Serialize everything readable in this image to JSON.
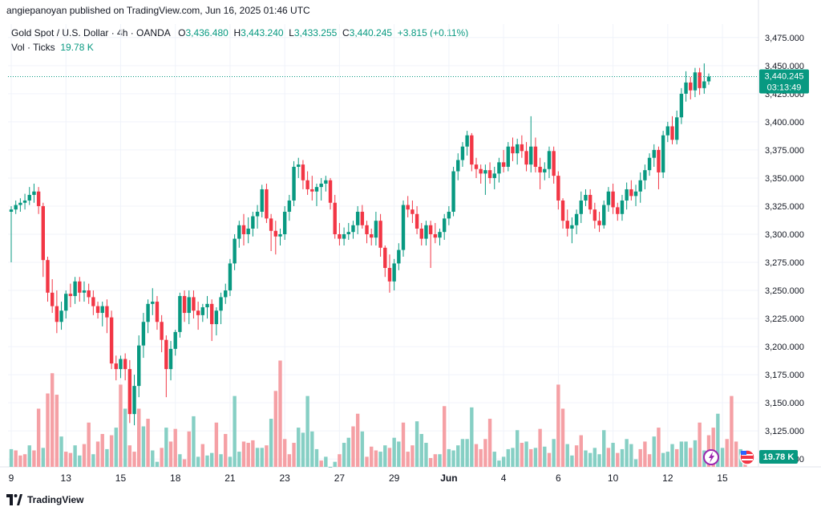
{
  "publisher_line": "angiepanoyan published on TradingView.com, Jun 16, 2025 01:46 UTC",
  "legend": {
    "symbol": "Gold Spot / U.S. Dollar · 4h · OANDA",
    "o_label": "O",
    "o": "3,436.480",
    "h_label": "H",
    "h": "3,443.240",
    "l_label": "L",
    "l": "3,433.255",
    "c_label": "C",
    "c": "3,440.245",
    "change": "+3.815 (+0.11%)",
    "vol_label": "Vol · Ticks",
    "vol_value": "19.78 K"
  },
  "price_badge": {
    "price": "3,440.245",
    "countdown": "03:13:49"
  },
  "volume_badge": "19.78 K",
  "footer_brand": "TradingView",
  "colors": {
    "up": "#089981",
    "down": "#f23645",
    "up_vol": "#86cfc4",
    "down_vol": "#f5a0a5",
    "grid": "#f0f3fa"
  },
  "chart_data": {
    "type": "candlestick",
    "ylim": [
      3093,
      3487
    ],
    "y_ticks": [
      "3,475.000",
      "3,450.000",
      "3,425.000",
      "3,400.000",
      "3,375.000",
      "3,350.000",
      "3,325.000",
      "3,300.000",
      "3,275.000",
      "3,250.000",
      "3,225.000",
      "3,200.000",
      "3,175.000",
      "3,150.000",
      "3,125.000",
      "3,100.000"
    ],
    "x_ticks": [
      {
        "label": "9",
        "index": 0
      },
      {
        "label": "13",
        "index": 12
      },
      {
        "label": "15",
        "index": 24
      },
      {
        "label": "18",
        "index": 36
      },
      {
        "label": "21",
        "index": 48
      },
      {
        "label": "23",
        "index": 60
      },
      {
        "label": "27",
        "index": 72
      },
      {
        "label": "29",
        "index": 84
      },
      {
        "label": "Jun",
        "index": 96
      },
      {
        "label": "4",
        "index": 108
      },
      {
        "label": "6",
        "index": 120
      },
      {
        "label": "10",
        "index": 132
      },
      {
        "label": "12",
        "index": 144
      },
      {
        "label": "15",
        "index": 156
      }
    ],
    "last_price": 3440.245,
    "candles": [
      [
        3320,
        3325,
        3275,
        3322
      ],
      [
        3322,
        3330,
        3318,
        3326
      ],
      [
        3326,
        3332,
        3320,
        3328
      ],
      [
        3328,
        3336,
        3322,
        3330
      ],
      [
        3330,
        3342,
        3326,
        3335
      ],
      [
        3335,
        3345,
        3328,
        3338
      ],
      [
        3338,
        3342,
        3318,
        3325
      ],
      [
        3325,
        3328,
        3262,
        3277
      ],
      [
        3277,
        3280,
        3240,
        3248
      ],
      [
        3248,
        3260,
        3230,
        3236
      ],
      [
        3236,
        3250,
        3212,
        3222
      ],
      [
        3222,
        3240,
        3215,
        3232
      ],
      [
        3232,
        3250,
        3225,
        3247
      ],
      [
        3247,
        3256,
        3235,
        3245
      ],
      [
        3245,
        3262,
        3238,
        3258
      ],
      [
        3258,
        3262,
        3240,
        3248
      ],
      [
        3248,
        3258,
        3240,
        3250
      ],
      [
        3250,
        3256,
        3238,
        3244
      ],
      [
        3244,
        3250,
        3228,
        3236
      ],
      [
        3236,
        3240,
        3225,
        3230
      ],
      [
        3230,
        3240,
        3218,
        3236
      ],
      [
        3236,
        3242,
        3212,
        3226
      ],
      [
        3226,
        3232,
        3180,
        3185
      ],
      [
        3185,
        3192,
        3170,
        3180
      ],
      [
        3180,
        3192,
        3172,
        3189
      ],
      [
        3189,
        3194,
        3170,
        3180
      ],
      [
        3180,
        3188,
        3132,
        3140
      ],
      [
        3140,
        3175,
        3130,
        3165
      ],
      [
        3165,
        3210,
        3155,
        3201
      ],
      [
        3201,
        3230,
        3190,
        3222
      ],
      [
        3222,
        3242,
        3212,
        3238
      ],
      [
        3238,
        3252,
        3228,
        3240
      ],
      [
        3240,
        3245,
        3215,
        3222
      ],
      [
        3222,
        3228,
        3195,
        3206
      ],
      [
        3206,
        3210,
        3155,
        3180
      ],
      [
        3180,
        3205,
        3170,
        3198
      ],
      [
        3198,
        3215,
        3192,
        3213
      ],
      [
        3213,
        3248,
        3208,
        3245
      ],
      [
        3245,
        3250,
        3222,
        3230
      ],
      [
        3230,
        3250,
        3220,
        3244
      ],
      [
        3244,
        3250,
        3225,
        3232
      ],
      [
        3232,
        3240,
        3215,
        3228
      ],
      [
        3228,
        3238,
        3222,
        3235
      ],
      [
        3235,
        3245,
        3225,
        3238
      ],
      [
        3238,
        3242,
        3205,
        3220
      ],
      [
        3220,
        3235,
        3210,
        3232
      ],
      [
        3232,
        3248,
        3220,
        3244
      ],
      [
        3244,
        3256,
        3238,
        3250
      ],
      [
        3250,
        3278,
        3245,
        3274
      ],
      [
        3274,
        3300,
        3268,
        3296
      ],
      [
        3296,
        3312,
        3288,
        3308
      ],
      [
        3308,
        3318,
        3290,
        3300
      ],
      [
        3300,
        3315,
        3292,
        3305
      ],
      [
        3305,
        3320,
        3298,
        3316
      ],
      [
        3316,
        3326,
        3305,
        3320
      ],
      [
        3320,
        3344,
        3315,
        3340
      ],
      [
        3340,
        3345,
        3310,
        3314
      ],
      [
        3314,
        3318,
        3285,
        3303
      ],
      [
        3303,
        3312,
        3282,
        3298
      ],
      [
        3298,
        3305,
        3290,
        3300
      ],
      [
        3300,
        3325,
        3295,
        3320
      ],
      [
        3320,
        3335,
        3312,
        3330
      ],
      [
        3330,
        3365,
        3325,
        3360
      ],
      [
        3360,
        3368,
        3350,
        3362
      ],
      [
        3362,
        3366,
        3340,
        3348
      ],
      [
        3348,
        3356,
        3335,
        3340
      ],
      [
        3340,
        3352,
        3330,
        3338
      ],
      [
        3338,
        3345,
        3325,
        3342
      ],
      [
        3342,
        3350,
        3330,
        3345
      ],
      [
        3345,
        3352,
        3338,
        3348
      ],
      [
        3348,
        3350,
        3322,
        3328
      ],
      [
        3328,
        3335,
        3296,
        3300
      ],
      [
        3300,
        3310,
        3290,
        3296
      ],
      [
        3296,
        3306,
        3290,
        3300
      ],
      [
        3300,
        3310,
        3295,
        3302
      ],
      [
        3302,
        3312,
        3296,
        3308
      ],
      [
        3308,
        3325,
        3300,
        3320
      ],
      [
        3320,
        3326,
        3305,
        3308
      ],
      [
        3308,
        3312,
        3292,
        3300
      ],
      [
        3300,
        3305,
        3290,
        3297
      ],
      [
        3297,
        3320,
        3290,
        3312
      ],
      [
        3312,
        3318,
        3280,
        3288
      ],
      [
        3288,
        3290,
        3262,
        3270
      ],
      [
        3270,
        3282,
        3248,
        3258
      ],
      [
        3258,
        3278,
        3250,
        3274
      ],
      [
        3274,
        3292,
        3268,
        3286
      ],
      [
        3286,
        3330,
        3280,
        3326
      ],
      [
        3326,
        3334,
        3315,
        3322
      ],
      [
        3322,
        3330,
        3310,
        3318
      ],
      [
        3318,
        3325,
        3300,
        3305
      ],
      [
        3305,
        3310,
        3290,
        3296
      ],
      [
        3296,
        3312,
        3290,
        3308
      ],
      [
        3308,
        3312,
        3270,
        3300
      ],
      [
        3300,
        3310,
        3292,
        3297
      ],
      [
        3297,
        3305,
        3290,
        3302
      ],
      [
        3302,
        3318,
        3295,
        3314
      ],
      [
        3314,
        3325,
        3308,
        3320
      ],
      [
        3320,
        3360,
        3316,
        3356
      ],
      [
        3356,
        3372,
        3348,
        3366
      ],
      [
        3366,
        3382,
        3360,
        3378
      ],
      [
        3378,
        3392,
        3370,
        3388
      ],
      [
        3388,
        3390,
        3356,
        3362
      ],
      [
        3362,
        3368,
        3350,
        3358
      ],
      [
        3358,
        3362,
        3345,
        3354
      ],
      [
        3354,
        3362,
        3335,
        3357
      ],
      [
        3357,
        3364,
        3345,
        3350
      ],
      [
        3350,
        3360,
        3340,
        3354
      ],
      [
        3354,
        3368,
        3346,
        3364
      ],
      [
        3364,
        3375,
        3355,
        3360
      ],
      [
        3360,
        3382,
        3356,
        3378
      ],
      [
        3378,
        3386,
        3365,
        3372
      ],
      [
        3372,
        3385,
        3362,
        3380
      ],
      [
        3380,
        3388,
        3368,
        3374
      ],
      [
        3374,
        3382,
        3356,
        3362
      ],
      [
        3362,
        3405,
        3355,
        3378
      ],
      [
        3378,
        3386,
        3355,
        3360
      ],
      [
        3360,
        3368,
        3340,
        3355
      ],
      [
        3355,
        3364,
        3348,
        3358
      ],
      [
        3358,
        3378,
        3350,
        3374
      ],
      [
        3374,
        3378,
        3345,
        3352
      ],
      [
        3352,
        3356,
        3322,
        3330
      ],
      [
        3330,
        3332,
        3305,
        3312
      ],
      [
        3312,
        3322,
        3298,
        3305
      ],
      [
        3305,
        3315,
        3292,
        3308
      ],
      [
        3308,
        3322,
        3300,
        3318
      ],
      [
        3318,
        3338,
        3310,
        3330
      ],
      [
        3330,
        3340,
        3325,
        3335
      ],
      [
        3335,
        3340,
        3318,
        3322
      ],
      [
        3322,
        3328,
        3305,
        3312
      ],
      [
        3312,
        3320,
        3302,
        3308
      ],
      [
        3308,
        3330,
        3305,
        3326
      ],
      [
        3326,
        3342,
        3320,
        3338
      ],
      [
        3338,
        3345,
        3318,
        3324
      ],
      [
        3324,
        3328,
        3312,
        3318
      ],
      [
        3318,
        3335,
        3312,
        3330
      ],
      [
        3330,
        3346,
        3322,
        3340
      ],
      [
        3340,
        3348,
        3330,
        3334
      ],
      [
        3334,
        3344,
        3325,
        3338
      ],
      [
        3338,
        3355,
        3328,
        3348
      ],
      [
        3348,
        3362,
        3340,
        3357
      ],
      [
        3357,
        3372,
        3352,
        3368
      ],
      [
        3368,
        3380,
        3360,
        3375
      ],
      [
        3375,
        3378,
        3340,
        3355
      ],
      [
        3355,
        3392,
        3350,
        3388
      ],
      [
        3388,
        3400,
        3382,
        3396
      ],
      [
        3396,
        3405,
        3380,
        3384
      ],
      [
        3384,
        3410,
        3380,
        3404
      ],
      [
        3404,
        3430,
        3398,
        3425
      ],
      [
        3425,
        3445,
        3418,
        3435
      ],
      [
        3435,
        3440,
        3420,
        3428
      ],
      [
        3428,
        3448,
        3422,
        3444
      ],
      [
        3444,
        3448,
        3424,
        3430
      ],
      [
        3430,
        3452,
        3425,
        3436
      ],
      [
        3436,
        3443,
        3433,
        3440.245
      ]
    ],
    "volumes": [
      [
        1140,
        1
      ],
      [
        1130,
        0
      ],
      [
        1090,
        0
      ],
      [
        1100,
        0
      ],
      [
        1170,
        1
      ],
      [
        1130,
        0
      ],
      [
        1460,
        0
      ],
      [
        1150,
        1
      ],
      [
        1580,
        0
      ],
      [
        1740,
        0
      ],
      [
        1570,
        0
      ],
      [
        1240,
        1
      ],
      [
        1120,
        0
      ],
      [
        1110,
        0
      ],
      [
        1170,
        1
      ],
      [
        1090,
        1
      ],
      [
        1180,
        0
      ],
      [
        1350,
        0
      ],
      [
        1100,
        1
      ],
      [
        1200,
        0
      ],
      [
        1260,
        0
      ],
      [
        1140,
        1
      ],
      [
        1250,
        0
      ],
      [
        1310,
        1
      ],
      [
        1650,
        0
      ],
      [
        1460,
        1
      ],
      [
        1170,
        0
      ],
      [
        1120,
        0
      ],
      [
        1460,
        0
      ],
      [
        1320,
        1
      ],
      [
        1380,
        0
      ],
      [
        1130,
        1
      ],
      [
        1040,
        1
      ],
      [
        1150,
        0
      ],
      [
        1310,
        1
      ],
      [
        1200,
        0
      ],
      [
        1300,
        0
      ],
      [
        1100,
        1
      ],
      [
        1060,
        0
      ],
      [
        1280,
        0
      ],
      [
        1400,
        1
      ],
      [
        1080,
        1
      ],
      [
        1180,
        0
      ],
      [
        1090,
        1
      ],
      [
        1110,
        1
      ],
      [
        1350,
        0
      ],
      [
        1100,
        1
      ],
      [
        1260,
        0
      ],
      [
        1080,
        1
      ],
      [
        1560,
        1
      ],
      [
        1120,
        1
      ],
      [
        1200,
        0
      ],
      [
        1190,
        0
      ],
      [
        1210,
        0
      ],
      [
        1150,
        1
      ],
      [
        1150,
        1
      ],
      [
        1170,
        0
      ],
      [
        1380,
        1
      ],
      [
        1600,
        0
      ],
      [
        1840,
        0
      ],
      [
        1220,
        0
      ],
      [
        1100,
        0
      ],
      [
        1190,
        0
      ],
      [
        1310,
        1
      ],
      [
        1270,
        1
      ],
      [
        1560,
        1
      ],
      [
        1280,
        1
      ],
      [
        1140,
        1
      ],
      [
        1050,
        0
      ],
      [
        1080,
        1
      ],
      [
        1000,
        1
      ],
      [
        1040,
        1
      ],
      [
        1100,
        0
      ],
      [
        1190,
        1
      ],
      [
        1230,
        1
      ],
      [
        1320,
        0
      ],
      [
        1420,
        0
      ],
      [
        1280,
        1
      ],
      [
        1080,
        0
      ],
      [
        1160,
        0
      ],
      [
        1130,
        0
      ],
      [
        1120,
        1
      ],
      [
        1170,
        1
      ],
      [
        1150,
        0
      ],
      [
        1230,
        1
      ],
      [
        1200,
        1
      ],
      [
        1350,
        0
      ],
      [
        1120,
        0
      ],
      [
        1170,
        0
      ],
      [
        1360,
        1
      ],
      [
        1260,
        1
      ],
      [
        1190,
        1
      ],
      [
        1070,
        0
      ],
      [
        1100,
        0
      ],
      [
        1100,
        1
      ],
      [
        1480,
        0
      ],
      [
        1140,
        1
      ],
      [
        1130,
        1
      ],
      [
        1170,
        1
      ],
      [
        1220,
        1
      ],
      [
        1220,
        1
      ],
      [
        1470,
        1
      ],
      [
        1180,
        0
      ],
      [
        1140,
        0
      ],
      [
        1220,
        0
      ],
      [
        1380,
        0
      ],
      [
        1120,
        1
      ],
      [
        1050,
        1
      ],
      [
        1080,
        1
      ],
      [
        1140,
        1
      ],
      [
        1150,
        1
      ],
      [
        1290,
        1
      ],
      [
        1190,
        0
      ],
      [
        1200,
        1
      ],
      [
        1140,
        0
      ],
      [
        1150,
        1
      ],
      [
        1300,
        0
      ],
      [
        1160,
        1
      ],
      [
        1110,
        0
      ],
      [
        1220,
        1
      ],
      [
        1650,
        0
      ],
      [
        1460,
        0
      ],
      [
        1180,
        1
      ],
      [
        1090,
        1
      ],
      [
        1170,
        0
      ],
      [
        1250,
        0
      ],
      [
        1130,
        1
      ],
      [
        1110,
        1
      ],
      [
        1150,
        1
      ],
      [
        1100,
        1
      ],
      [
        1290,
        1
      ],
      [
        1150,
        0
      ],
      [
        1190,
        1
      ],
      [
        1110,
        0
      ],
      [
        1140,
        1
      ],
      [
        1220,
        1
      ],
      [
        1180,
        1
      ],
      [
        1060,
        1
      ],
      [
        1140,
        0
      ],
      [
        1200,
        0
      ],
      [
        1100,
        0
      ],
      [
        1240,
        1
      ],
      [
        1310,
        0
      ],
      [
        1110,
        1
      ],
      [
        1120,
        1
      ],
      [
        1180,
        1
      ],
      [
        1140,
        0
      ],
      [
        1200,
        1
      ],
      [
        1200,
        1
      ],
      [
        1150,
        0
      ],
      [
        1210,
        1
      ],
      [
        1350,
        0
      ],
      [
        1130,
        1
      ],
      [
        1250,
        0
      ],
      [
        1310,
        0
      ],
      [
        1420,
        1
      ],
      [
        1150,
        1
      ],
      [
        1220,
        0
      ],
      [
        1560,
        0
      ],
      [
        1200,
        0
      ],
      [
        1140,
        1
      ],
      [
        1060,
        0
      ]
    ]
  }
}
